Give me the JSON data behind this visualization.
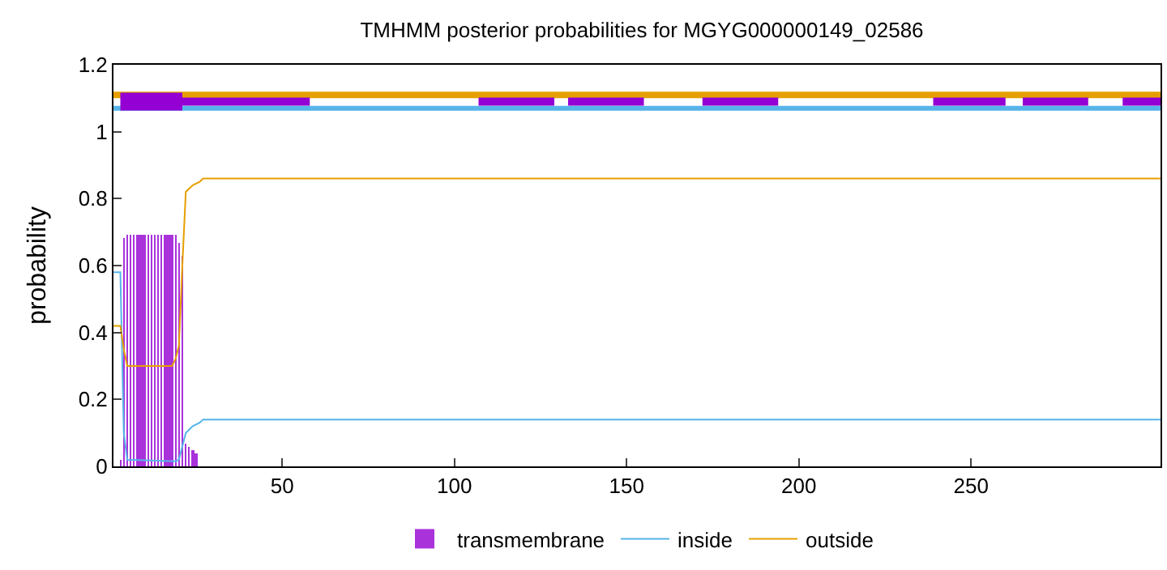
{
  "chart_data": {
    "type": "line",
    "title": "TMHMM posterior probabilities for MGYG000000149_02586",
    "ylabel": "probability",
    "xlim": [
      1,
      305
    ],
    "xticks": [
      50,
      100,
      150,
      200,
      250
    ],
    "ylim": [
      0,
      1.2
    ],
    "yticks": [
      0,
      0.2,
      0.4,
      0.6,
      0.8,
      1,
      1.2
    ],
    "legend": "bottom",
    "series": [
      {
        "name": "transmembrane",
        "type": "bar",
        "color": "#9400d3",
        "x": [
          3,
          4,
          5,
          6,
          7,
          8,
          9,
          10,
          11,
          12,
          13,
          14,
          15,
          16,
          17,
          18,
          19,
          20,
          21,
          22,
          23,
          24,
          25,
          26
        ],
        "values": [
          0.02,
          0.68,
          0.69,
          0.69,
          0.69,
          0.69,
          0.69,
          0.69,
          0.69,
          0.69,
          0.69,
          0.69,
          0.69,
          0.69,
          0.69,
          0.69,
          0.69,
          0.67,
          0.63,
          0.07,
          0.06,
          0.05,
          0.04,
          0.0
        ]
      },
      {
        "name": "inside",
        "color": "#56b4e9",
        "x": [
          1,
          3,
          4,
          5,
          19,
          20,
          21,
          22,
          24,
          26,
          27,
          305
        ],
        "values": [
          0.58,
          0.58,
          0.1,
          0.02,
          0.015,
          0.02,
          0.06,
          0.1,
          0.12,
          0.13,
          0.14,
          0.14
        ]
      },
      {
        "name": "outside",
        "color": "#e69f00",
        "x": [
          1,
          3,
          4,
          5,
          18,
          19,
          20,
          21,
          22,
          24,
          26,
          27,
          305
        ],
        "values": [
          0.42,
          0.42,
          0.35,
          0.3,
          0.3,
          0.32,
          0.36,
          0.6,
          0.82,
          0.84,
          0.85,
          0.86,
          0.86
        ]
      },
      {
        "color": "#e69f00",
        "x": [
          1,
          305
        ],
        "values": [
          1.11,
          1.11
        ]
      },
      {
        "color": "#56b4e9",
        "x": [
          1,
          305
        ],
        "values": [
          1.07,
          1.07
        ]
      },
      {
        "color": "#9400d3",
        "x": [
          21,
          58,
          null,
          107,
          129,
          null,
          133,
          155,
          null,
          172,
          194,
          null,
          239,
          260,
          null,
          265,
          284,
          null,
          294,
          305
        ],
        "values": [
          1.09,
          1.09,
          null,
          1.09,
          1.09,
          null,
          1.09,
          1.09,
          null,
          1.09,
          1.09,
          null,
          1.09,
          1.09,
          null,
          1.09,
          1.09,
          null,
          1.09,
          1.09
        ]
      },
      {
        "color": "#9400d3",
        "x": [
          3,
          21
        ],
        "values": [
          1.09,
          1.09
        ]
      }
    ]
  }
}
